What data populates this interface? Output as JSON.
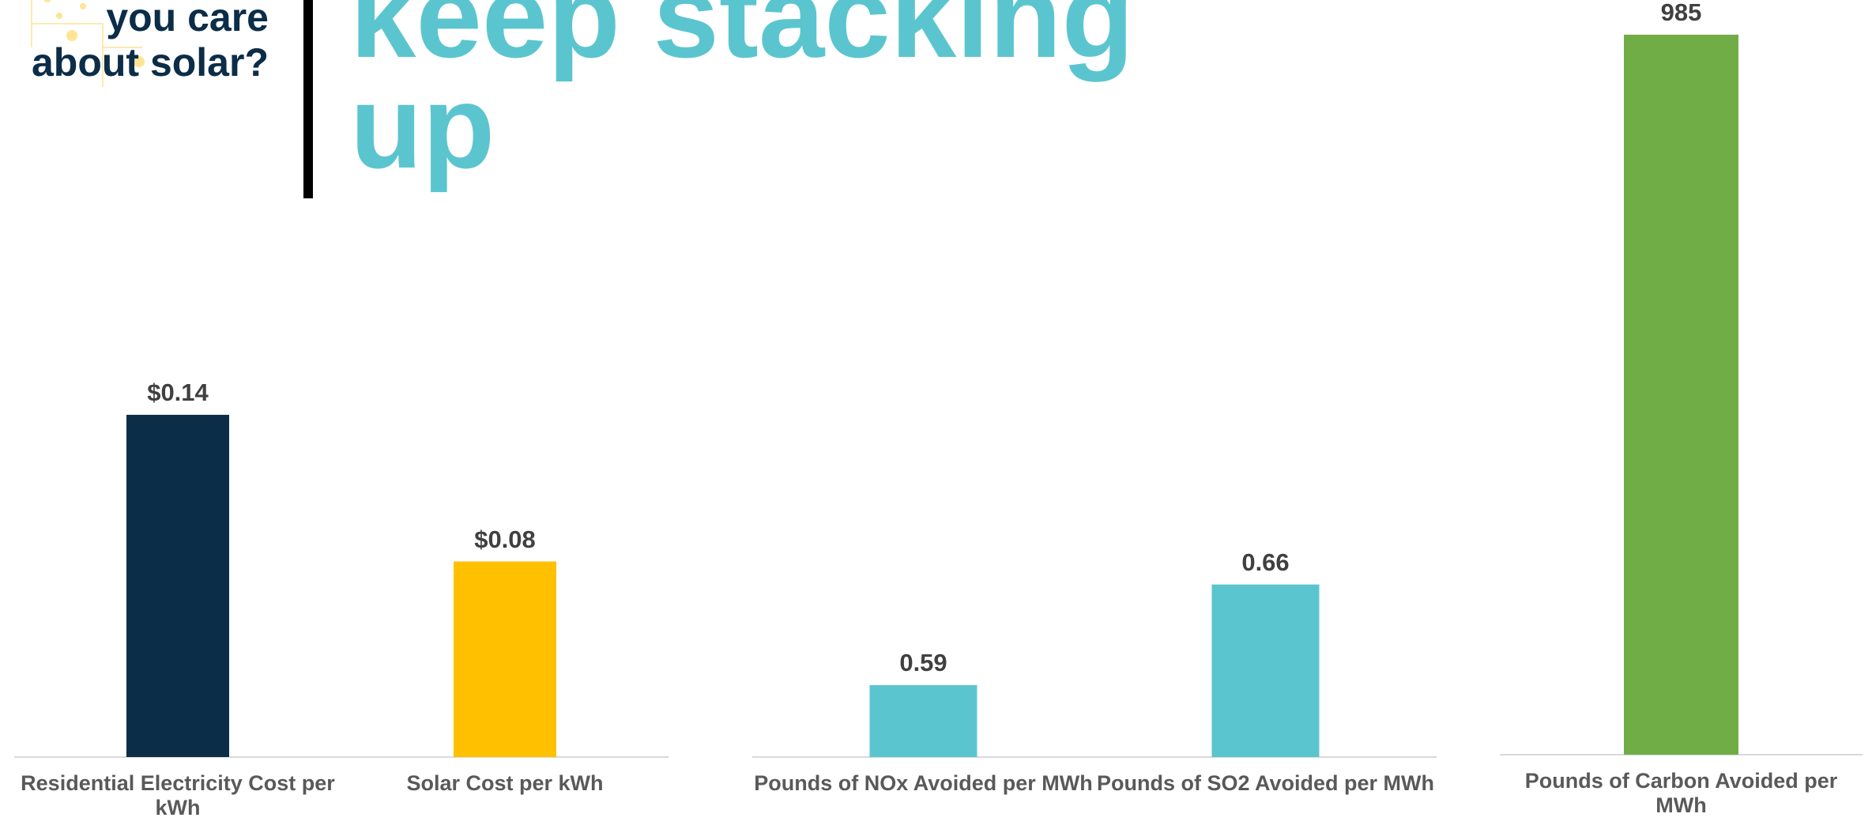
{
  "header": {
    "subtitle": "you care about solar?",
    "title": "keep stacking up"
  },
  "chart_data": [
    {
      "type": "bar",
      "categories": [
        "Residential Electricity Cost per kWh",
        "Solar Cost per kWh"
      ],
      "values": [
        0.14,
        0.08
      ],
      "value_labels": [
        "$0.14",
        "$0.08"
      ],
      "colors": [
        "#0b2d48",
        "#ffc000"
      ],
      "ylim": [
        0,
        0.3
      ]
    },
    {
      "type": "bar",
      "categories": [
        "Pounds of NOx Avoided per MWh",
        "Pounds of SO2 Avoided per MWh"
      ],
      "values": [
        0.59,
        0.66
      ],
      "colors": [
        "#5bc5cf",
        "#5bc5cf"
      ],
      "ylim": [
        0.54,
        1.05
      ]
    },
    {
      "type": "bar",
      "categories": [
        "Pounds of Carbon Avoided per MWh"
      ],
      "values": [
        985
      ],
      "colors": [
        "#70ad47"
      ],
      "ylim": [
        0,
        1000
      ]
    }
  ]
}
